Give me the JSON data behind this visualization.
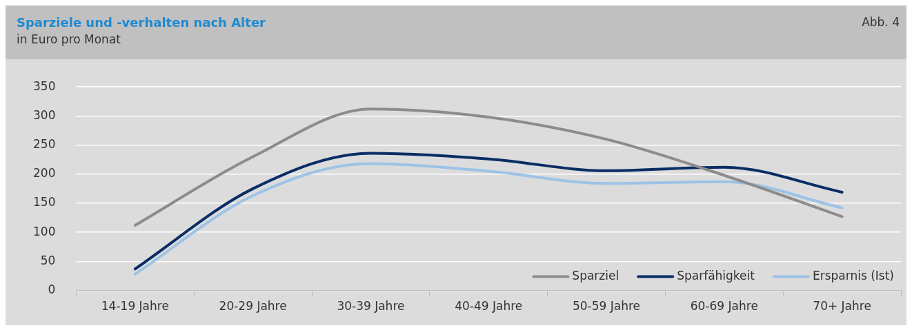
{
  "chart_data": {
    "type": "line",
    "title": "Sparziele und -verhalten nach Alter",
    "subtitle": "in Euro pro Monat",
    "annotations": [
      "Abb. 4"
    ],
    "categories": [
      "14-19 Jahre",
      "20-29 Jahre",
      "30-39 Jahre",
      "40-49 Jahre",
      "50-59 Jahre",
      "60-69 Jahre",
      "70+ Jahre"
    ],
    "series": [
      {
        "name": "Sparziel",
        "color": "#8c8c8c",
        "values": [
          112,
          230,
          312,
          298,
          260,
          198,
          127
        ]
      },
      {
        "name": "Sparfähigkeit",
        "color": "#0a2d64",
        "values": [
          37,
          175,
          236,
          226,
          206,
          212,
          169
        ]
      },
      {
        "name": "Ersparnis (Ist)",
        "color": "#9dc3e6",
        "values": [
          28,
          163,
          218,
          205,
          184,
          187,
          142
        ]
      }
    ],
    "ylim": [
      0,
      350
    ],
    "yticks": [
      0,
      50,
      100,
      150,
      200,
      250,
      300,
      350
    ],
    "grid": "y",
    "legend": "bottom right",
    "marker": "none",
    "line_style": "solid"
  }
}
